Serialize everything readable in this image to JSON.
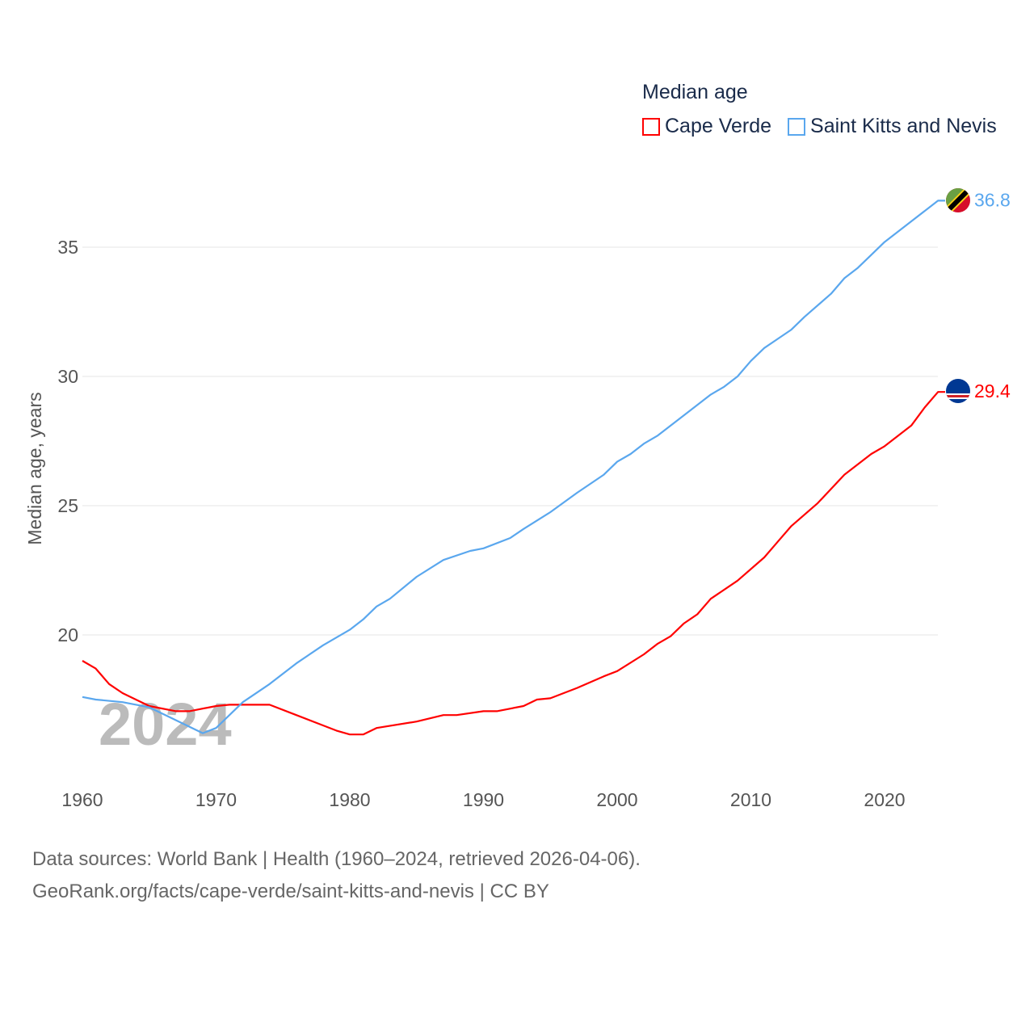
{
  "chart_data": {
    "type": "line",
    "title": "Median age",
    "xlabel": "",
    "ylabel": "Median age, years",
    "xlim": [
      1960,
      2024
    ],
    "ylim": [
      15,
      37
    ],
    "x_ticks": [
      "1960",
      "1970",
      "1980",
      "1990",
      "2000",
      "2010",
      "2020"
    ],
    "y_ticks": [
      "20",
      "25",
      "30",
      "35"
    ],
    "grid": "horizontal",
    "legend_placement": "top-right",
    "watermark_year": "2024",
    "series": [
      {
        "name": "Cape Verde",
        "color": "#ff0000",
        "end_label": "29.4",
        "x": [
          1960,
          1961,
          1962,
          1963,
          1964,
          1965,
          1967,
          1968,
          1970,
          1971,
          1974,
          1976,
          1978,
          1979,
          1980,
          1981,
          1982,
          1985,
          1987,
          1988,
          1990,
          1991,
          1993,
          1994,
          1995,
          1997,
          1999,
          2000,
          2002,
          2003,
          2004,
          2005,
          2006,
          2007,
          2009,
          2011,
          2012,
          2013,
          2015,
          2017,
          2019,
          2020,
          2022,
          2023,
          2024
        ],
        "y": [
          19.0,
          18.7,
          18.1,
          17.75,
          17.5,
          17.25,
          17.05,
          17.05,
          17.25,
          17.3,
          17.3,
          16.9,
          16.5,
          16.3,
          16.15,
          16.15,
          16.4,
          16.65,
          16.9,
          16.9,
          17.05,
          17.05,
          17.25,
          17.5,
          17.55,
          17.95,
          18.4,
          18.6,
          19.25,
          19.65,
          19.95,
          20.45,
          20.8,
          21.4,
          22.1,
          23.0,
          23.6,
          24.2,
          25.1,
          26.2,
          27.0,
          27.3,
          28.1,
          28.8,
          29.4
        ]
      },
      {
        "name": "Saint Kitts and Nevis",
        "color": "#5aa7ee",
        "end_label": "36.8",
        "x": [
          1960,
          1961,
          1963,
          1965,
          1967,
          1969,
          1970,
          1972,
          1974,
          1976,
          1978,
          1980,
          1981,
          1982,
          1983,
          1985,
          1987,
          1989,
          1990,
          1992,
          1993,
          1995,
          1997,
          1999,
          2000,
          2001,
          2002,
          2003,
          2005,
          2007,
          2008,
          2009,
          2010,
          2011,
          2012,
          2013,
          2014,
          2016,
          2017,
          2018,
          2019,
          2020,
          2022,
          2024
        ],
        "y": [
          17.6,
          17.5,
          17.4,
          17.2,
          16.7,
          16.2,
          16.4,
          17.4,
          18.1,
          18.9,
          19.6,
          20.2,
          20.6,
          21.1,
          21.4,
          22.25,
          22.9,
          23.25,
          23.35,
          23.75,
          24.1,
          24.75,
          25.5,
          26.2,
          26.7,
          27.0,
          27.4,
          27.7,
          28.5,
          29.3,
          29.6,
          30.0,
          30.6,
          31.1,
          31.45,
          31.8,
          32.3,
          33.2,
          33.8,
          34.2,
          34.7,
          35.2,
          36.0,
          36.8
        ]
      }
    ]
  },
  "source": {
    "line1": "Data sources: World Bank | Health (1960–2024, retrieved 2026-04-06).",
    "line2": "GeoRank.org/facts/cape-verde/saint-kitts-and-nevis | CC BY"
  }
}
